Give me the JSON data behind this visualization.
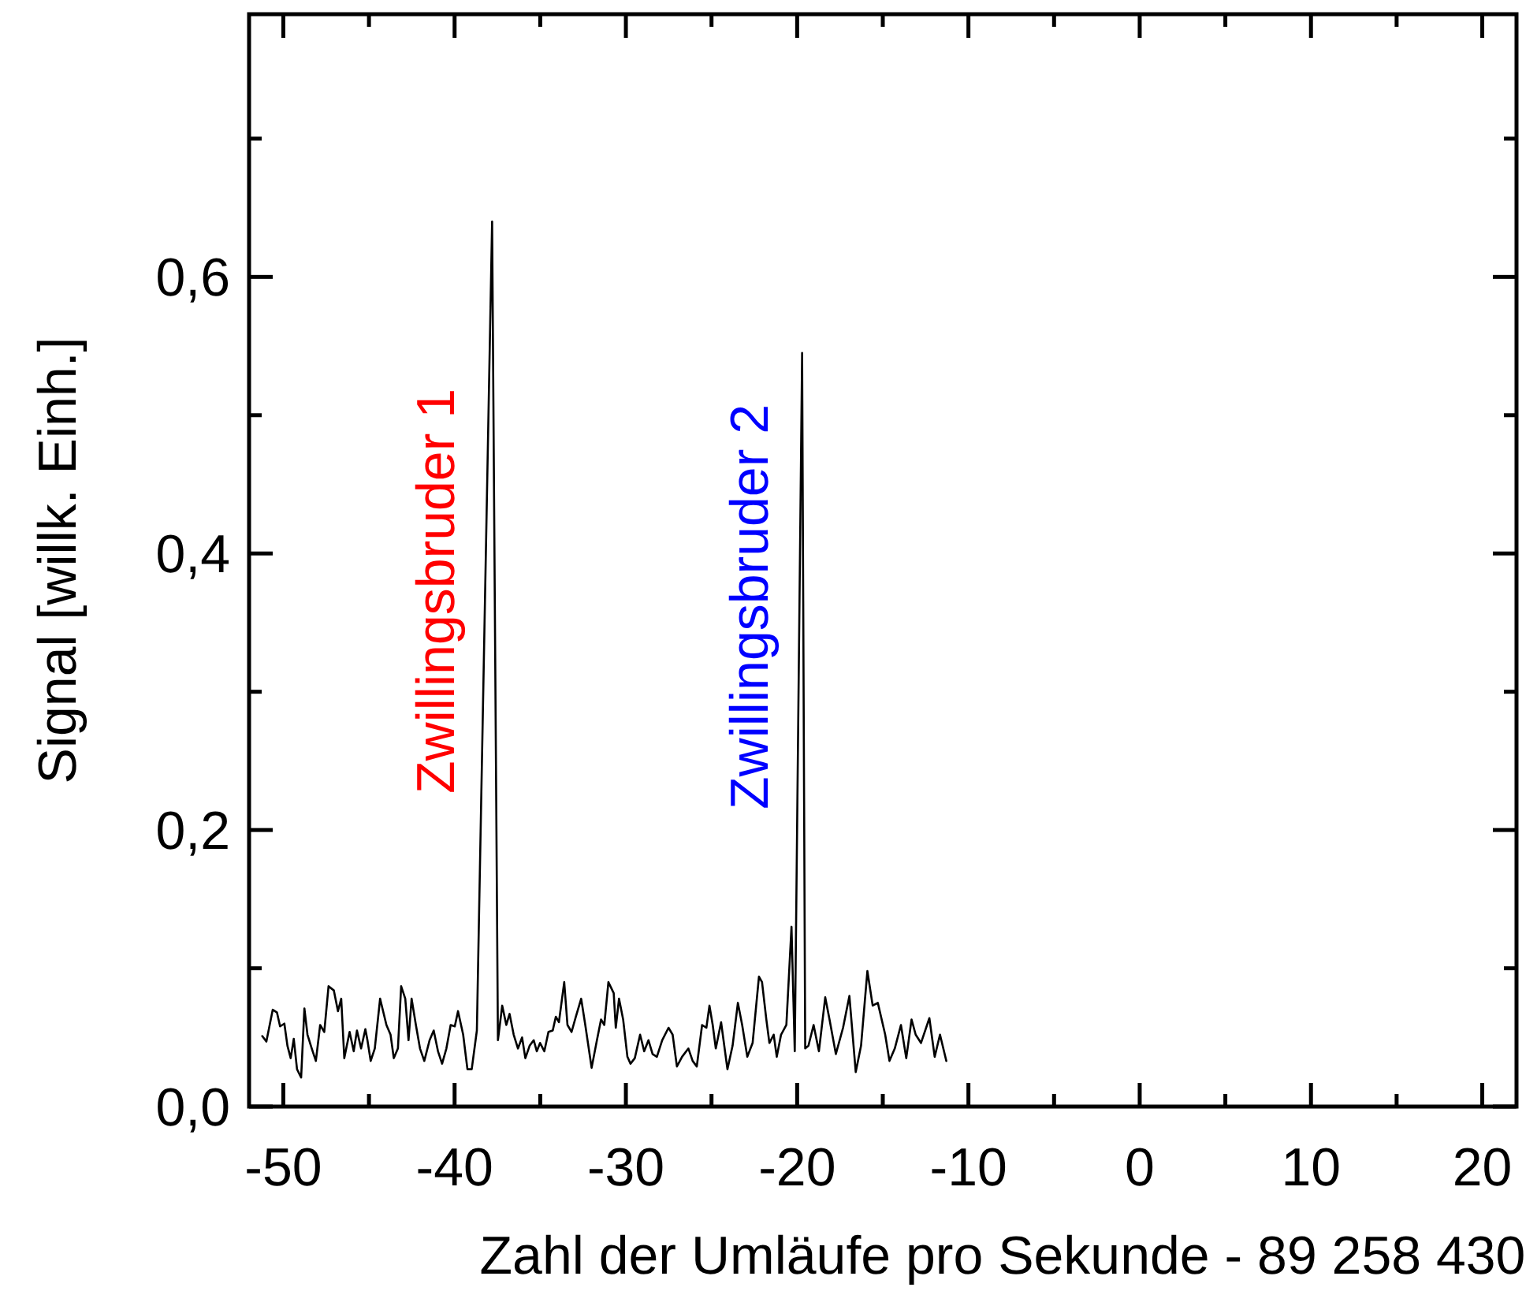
{
  "chart_data": {
    "type": "line",
    "xlabel": "Zahl der Umläufe pro Sekunde - 89 258 430",
    "ylabel": "Signal [willk. Einh.]",
    "xlim": [
      -52,
      22
    ],
    "ylim": [
      0,
      0.79
    ],
    "xticks": [
      -50,
      {
        "value": -45,
        "label": null
      },
      -40,
      {
        "value": -35,
        "label": null
      },
      -30,
      {
        "value": -25,
        "label": null
      },
      -20,
      {
        "value": -15,
        "label": null
      },
      -10,
      {
        "value": -5,
        "label": null
      },
      0,
      {
        "value": 5,
        "label": null
      },
      10,
      {
        "value": 15,
        "label": null
      },
      20
    ],
    "yticks": [
      {
        "value": 0,
        "label": "0,0"
      },
      {
        "value": 0.1,
        "label": null
      },
      {
        "value": 0.2,
        "label": "0,2"
      },
      {
        "value": 0.3,
        "label": null
      },
      {
        "value": 0.4,
        "label": "0,4"
      },
      {
        "value": 0.5,
        "label": null
      },
      {
        "value": 0.6,
        "label": "0,6"
      },
      {
        "value": 0.7,
        "label": null
      }
    ],
    "grid": false,
    "marker": "none",
    "line_style": "solid",
    "annotations": [
      "Zwillingsbruder 1",
      "Zwillingsbruder 2"
    ],
    "series": [
      {
        "color": "#000000",
        "x": [
          -51.23,
          -50.99,
          -50.62,
          -50.37,
          -50.19,
          -49.94,
          -49.76,
          -49.57,
          -49.39,
          -49.2,
          -48.96,
          -48.77,
          -48.59,
          -48.34,
          -48.1,
          -47.85,
          -47.61,
          -47.36,
          -47.05,
          -46.81,
          -46.62,
          -46.44,
          -46.13,
          -45.89,
          -45.7,
          -45.46,
          -45.21,
          -45.09,
          -44.9,
          -44.66,
          -44.35,
          -43.98,
          -43.74,
          -43.55,
          -43.31,
          -43.12,
          -42.88,
          -42.69,
          -42.51,
          -42.26,
          -42.02,
          -41.77,
          -41.46,
          -41.22,
          -40.97,
          -40.73,
          -40.48,
          -40.23,
          -39.99,
          -39.8,
          -39.5,
          -39.25,
          -39.0,
          -38.7,
          -37.81,
          -37.47,
          -37.22,
          -36.98,
          -36.79,
          -36.55,
          -36.3,
          -36.06,
          -35.87,
          -35.62,
          -35.38,
          -35.2,
          -35.01,
          -34.76,
          -34.52,
          -34.27,
          -34.09,
          -33.91,
          -33.6,
          -33.41,
          -33.17,
          -32.92,
          -32.61,
          -32.37,
          -32.0,
          -31.69,
          -31.45,
          -31.26,
          -31.02,
          -30.71,
          -30.59,
          -30.4,
          -30.16,
          -29.91,
          -29.73,
          -29.48,
          -29.17,
          -28.93,
          -28.68,
          -28.44,
          -28.19,
          -27.88,
          -27.51,
          -27.27,
          -27.02,
          -26.72,
          -26.35,
          -26.1,
          -25.86,
          -25.55,
          -25.3,
          -25.12,
          -24.93,
          -24.75,
          -24.44,
          -24.07,
          -23.77,
          -23.46,
          -23.21,
          -22.91,
          -22.6,
          -22.23,
          -22.05,
          -21.8,
          -21.62,
          -21.37,
          -21.19,
          -20.94,
          -20.63,
          -20.33,
          -20.14,
          -19.71,
          -19.53,
          -19.34,
          -19.04,
          -18.73,
          -18.36,
          -18.11,
          -17.74,
          -17.32,
          -16.95,
          -16.58,
          -16.27,
          -15.9,
          -15.59,
          -15.29,
          -14.86,
          -14.61,
          -14.3,
          -13.94,
          -13.63,
          -13.32,
          -13.08,
          -12.77,
          -12.28,
          -11.97,
          -11.66,
          -11.29
        ],
        "values": [
          0.051,
          0.047,
          0.07,
          0.068,
          0.058,
          0.06,
          0.044,
          0.035,
          0.049,
          0.027,
          0.021,
          0.071,
          0.052,
          0.042,
          0.033,
          0.059,
          0.054,
          0.087,
          0.084,
          0.069,
          0.078,
          0.035,
          0.054,
          0.04,
          0.055,
          0.042,
          0.056,
          0.048,
          0.033,
          0.042,
          0.078,
          0.059,
          0.052,
          0.035,
          0.042,
          0.087,
          0.078,
          0.048,
          0.078,
          0.059,
          0.042,
          0.033,
          0.048,
          0.055,
          0.04,
          0.031,
          0.042,
          0.059,
          0.058,
          0.069,
          0.052,
          0.027,
          0.027,
          0.055,
          0.64,
          0.048,
          0.073,
          0.059,
          0.067,
          0.052,
          0.042,
          0.05,
          0.035,
          0.044,
          0.048,
          0.04,
          0.046,
          0.04,
          0.054,
          0.055,
          0.065,
          0.061,
          0.09,
          0.059,
          0.054,
          0.065,
          0.078,
          0.059,
          0.028,
          0.048,
          0.063,
          0.059,
          0.09,
          0.082,
          0.057,
          0.078,
          0.063,
          0.036,
          0.031,
          0.035,
          0.052,
          0.04,
          0.048,
          0.038,
          0.036,
          0.048,
          0.057,
          0.052,
          0.029,
          0.036,
          0.042,
          0.033,
          0.029,
          0.059,
          0.057,
          0.073,
          0.059,
          0.042,
          0.061,
          0.027,
          0.044,
          0.075,
          0.059,
          0.036,
          0.046,
          0.094,
          0.09,
          0.063,
          0.046,
          0.052,
          0.036,
          0.052,
          0.059,
          0.13,
          0.04,
          0.545,
          0.042,
          0.044,
          0.059,
          0.04,
          0.079,
          0.063,
          0.038,
          0.057,
          0.08,
          0.025,
          0.044,
          0.098,
          0.073,
          0.075,
          0.052,
          0.033,
          0.042,
          0.059,
          0.035,
          0.063,
          0.052,
          0.046,
          0.064,
          0.036,
          0.052,
          0.033
        ]
      }
    ]
  }
}
